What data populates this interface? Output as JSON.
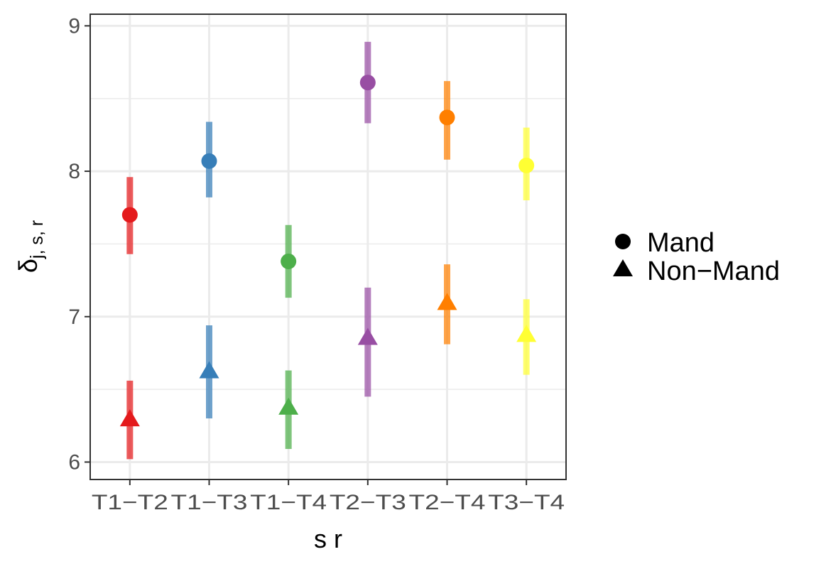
{
  "chart_data": {
    "type": "scatter",
    "xlabel": "s r",
    "ylabel": {
      "base": "δ",
      "subscript": "j, s, r"
    },
    "categories": [
      "T1−T2",
      "T1−T3",
      "T1−T4",
      "T2−T3",
      "T2−T4",
      "T3−T4"
    ],
    "category_colors": [
      "#E41A1C",
      "#377EB8",
      "#4DAF4A",
      "#984EA3",
      "#FF7F00",
      "#FFFF33"
    ],
    "ylim": [
      5.88,
      9.08
    ],
    "yticks": [
      "6",
      "7",
      "8",
      "9"
    ],
    "grid": true,
    "legend_position": "right",
    "series": [
      {
        "name": "Mand",
        "marker": "circle",
        "values": [
          7.7,
          8.07,
          7.38,
          8.61,
          8.37,
          8.04
        ],
        "lower": [
          7.43,
          7.82,
          7.13,
          8.33,
          8.08,
          7.8
        ],
        "upper": [
          7.96,
          8.34,
          7.63,
          8.89,
          8.62,
          8.3
        ]
      },
      {
        "name": "Non−Mand",
        "marker": "triangle",
        "values": [
          6.29,
          6.62,
          6.37,
          6.85,
          7.09,
          6.87
        ],
        "lower": [
          6.02,
          6.3,
          6.09,
          6.45,
          6.81,
          6.6
        ],
        "upper": [
          6.56,
          6.94,
          6.63,
          7.2,
          7.36,
          7.12
        ]
      }
    ]
  }
}
